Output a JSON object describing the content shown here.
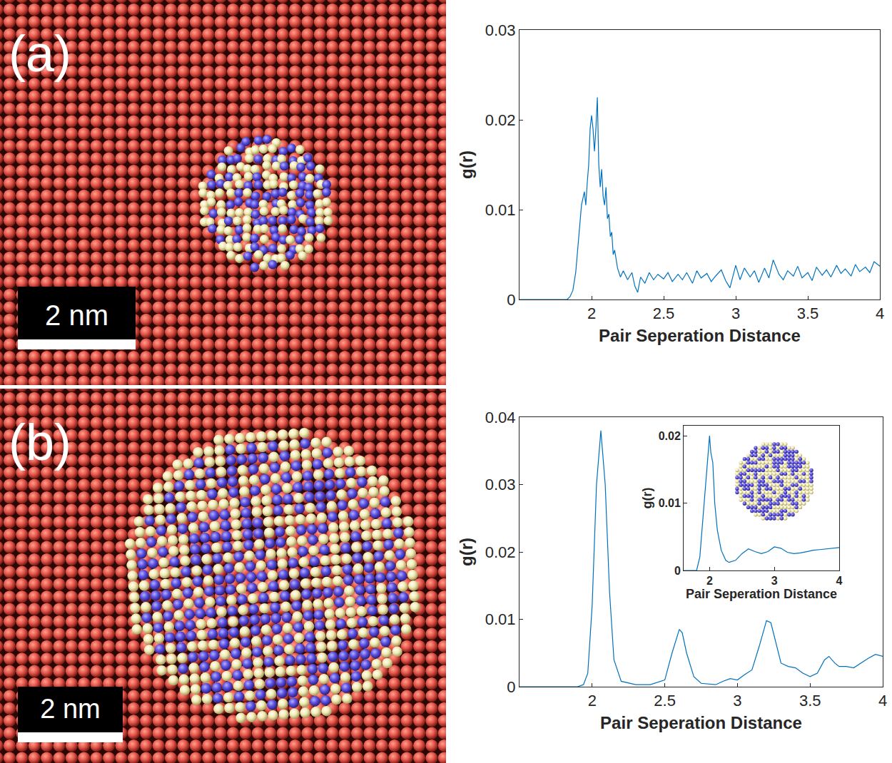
{
  "panels": [
    {
      "label": "(a)",
      "scale_bar": "2 nm"
    },
    {
      "label": "(b)",
      "scale_bar": "2 nm"
    }
  ],
  "chart_data": [
    {
      "type": "line",
      "color": "#0072bd",
      "grid": false,
      "x_label": "Pair Seperation Distance",
      "y_label": "g(r)",
      "xlim": [
        1.5,
        4
      ],
      "ylim": [
        0,
        0.03
      ],
      "xticks": [
        2,
        2.5,
        3,
        3.5,
        4
      ],
      "yticks": [
        0,
        0.01,
        0.02,
        0.03
      ],
      "x": [
        1.5,
        1.6,
        1.7,
        1.8,
        1.83,
        1.85,
        1.87,
        1.89,
        1.91,
        1.93,
        1.95,
        1.96,
        1.97,
        1.98,
        1.99,
        2.0,
        2.01,
        2.02,
        2.03,
        2.04,
        2.05,
        2.06,
        2.07,
        2.08,
        2.09,
        2.1,
        2.11,
        2.12,
        2.13,
        2.14,
        2.15,
        2.16,
        2.18,
        2.2,
        2.22,
        2.25,
        2.28,
        2.3,
        2.32,
        2.34,
        2.37,
        2.4,
        2.43,
        2.46,
        2.5,
        2.53,
        2.56,
        2.6,
        2.63,
        2.66,
        2.7,
        2.73,
        2.76,
        2.8,
        2.83,
        2.86,
        2.9,
        2.93,
        2.96,
        3.0,
        3.03,
        3.06,
        3.1,
        3.13,
        3.16,
        3.2,
        3.23,
        3.26,
        3.3,
        3.33,
        3.36,
        3.4,
        3.43,
        3.46,
        3.5,
        3.53,
        3.56,
        3.6,
        3.63,
        3.66,
        3.7,
        3.73,
        3.76,
        3.8,
        3.83,
        3.86,
        3.9,
        3.93,
        3.96,
        4.0
      ],
      "values": [
        0,
        0,
        0,
        0,
        0,
        0.0003,
        0.001,
        0.003,
        0.007,
        0.0105,
        0.012,
        0.0105,
        0.013,
        0.015,
        0.019,
        0.0205,
        0.019,
        0.0165,
        0.019,
        0.0225,
        0.015,
        0.0125,
        0.0145,
        0.0115,
        0.0105,
        0.0125,
        0.009,
        0.0095,
        0.007,
        0.0075,
        0.005,
        0.0055,
        0.0035,
        0.0025,
        0.0032,
        0.0022,
        0.003,
        0.0015,
        0.0008,
        0.0025,
        0.0018,
        0.003,
        0.0022,
        0.0028,
        0.0023,
        0.003,
        0.002,
        0.0028,
        0.0022,
        0.003,
        0.0018,
        0.0032,
        0.0024,
        0.0029,
        0.002,
        0.0026,
        0.0033,
        0.0021,
        0.0013,
        0.0038,
        0.0022,
        0.0035,
        0.0025,
        0.0032,
        0.0019,
        0.0035,
        0.0024,
        0.0044,
        0.0028,
        0.0022,
        0.0032,
        0.0026,
        0.0037,
        0.0024,
        0.003,
        0.0021,
        0.0036,
        0.0027,
        0.0033,
        0.0025,
        0.0038,
        0.0029,
        0.0034,
        0.0026,
        0.0039,
        0.0031,
        0.0036,
        0.003,
        0.0042,
        0.0037
      ]
    },
    {
      "type": "line",
      "color": "#0072bd",
      "grid": false,
      "x_label": "Pair Seperation Distance",
      "y_label": "g(r)",
      "xlim": [
        1.5,
        4
      ],
      "ylim": [
        0,
        0.04
      ],
      "xticks": [
        2,
        2.5,
        3,
        3.5,
        4
      ],
      "yticks": [
        0,
        0.01,
        0.02,
        0.03,
        0.04
      ],
      "x": [
        1.5,
        1.7,
        1.9,
        1.94,
        1.97,
        2.0,
        2.03,
        2.06,
        2.09,
        2.12,
        2.15,
        2.2,
        2.3,
        2.4,
        2.5,
        2.55,
        2.6,
        2.62,
        2.65,
        2.7,
        2.75,
        2.85,
        2.9,
        2.95,
        3.0,
        3.05,
        3.1,
        3.15,
        3.2,
        3.23,
        3.27,
        3.3,
        3.35,
        3.4,
        3.45,
        3.5,
        3.55,
        3.6,
        3.63,
        3.67,
        3.7,
        3.75,
        3.8,
        3.85,
        3.9,
        3.95,
        4.0
      ],
      "values": [
        0,
        0,
        0,
        0.0003,
        0.002,
        0.012,
        0.03,
        0.038,
        0.03,
        0.014,
        0.004,
        0.0008,
        0.0003,
        0.0003,
        0.001,
        0.005,
        0.0085,
        0.008,
        0.005,
        0.0015,
        0.0005,
        0.0003,
        0.0008,
        0.0012,
        0.001,
        0.0018,
        0.0025,
        0.006,
        0.0098,
        0.0095,
        0.006,
        0.0035,
        0.003,
        0.0028,
        0.002,
        0.0015,
        0.002,
        0.004,
        0.0045,
        0.0035,
        0.003,
        0.003,
        0.0028,
        0.0035,
        0.0042,
        0.0048,
        0.0045
      ]
    },
    {
      "type": "line",
      "color": "#0072bd",
      "grid": false,
      "x_label": "Pair Seperation Distance",
      "y_label": "g(r)",
      "xlim": [
        1.6,
        4
      ],
      "ylim": [
        0,
        0.0215
      ],
      "xticks": [
        2,
        3,
        4
      ],
      "yticks": [
        0,
        0.01,
        0.02
      ],
      "x": [
        1.6,
        1.8,
        1.85,
        1.9,
        1.95,
        1.98,
        2.0,
        2.02,
        2.05,
        2.08,
        2.12,
        2.18,
        2.25,
        2.3,
        2.4,
        2.5,
        2.6,
        2.7,
        2.8,
        2.9,
        3.0,
        3.1,
        3.2,
        3.3,
        3.4,
        3.5,
        3.6,
        3.7,
        3.8,
        3.9,
        4.0
      ],
      "values": [
        0,
        0,
        0.002,
        0.008,
        0.014,
        0.017,
        0.02,
        0.0175,
        0.016,
        0.01,
        0.006,
        0.003,
        0.0015,
        0.0012,
        0.0015,
        0.0025,
        0.0032,
        0.0028,
        0.0025,
        0.0028,
        0.0035,
        0.0033,
        0.0027,
        0.0025,
        0.0026,
        0.0028,
        0.003,
        0.0031,
        0.0032,
        0.0033,
        0.0034
      ]
    }
  ]
}
